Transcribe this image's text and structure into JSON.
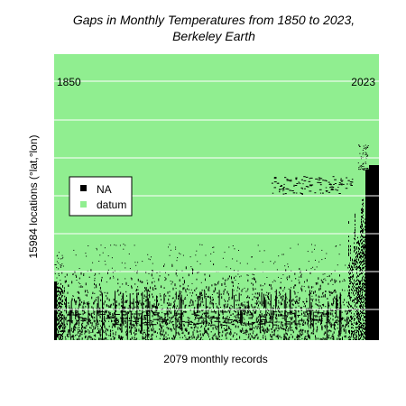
{
  "chart_data": {
    "type": "heatmap",
    "title_line1": "Gaps in Monthly Temperatures from 1850 to 2023,",
    "title_line2": "Berkeley Earth",
    "xlabel": "2079 monthly records",
    "ylabel": "15984 locations (°lat,°lon)",
    "start_label": "1850",
    "end_label": "2023",
    "grid": true,
    "legend_position": "left",
    "legend": [
      {
        "name": "NA",
        "color": "#000000"
      },
      {
        "name": "datum",
        "color": "#90ee90"
      }
    ],
    "colors": {
      "datum": "#90ee90",
      "na": "#000000",
      "grid": "#ffffff"
    }
  }
}
